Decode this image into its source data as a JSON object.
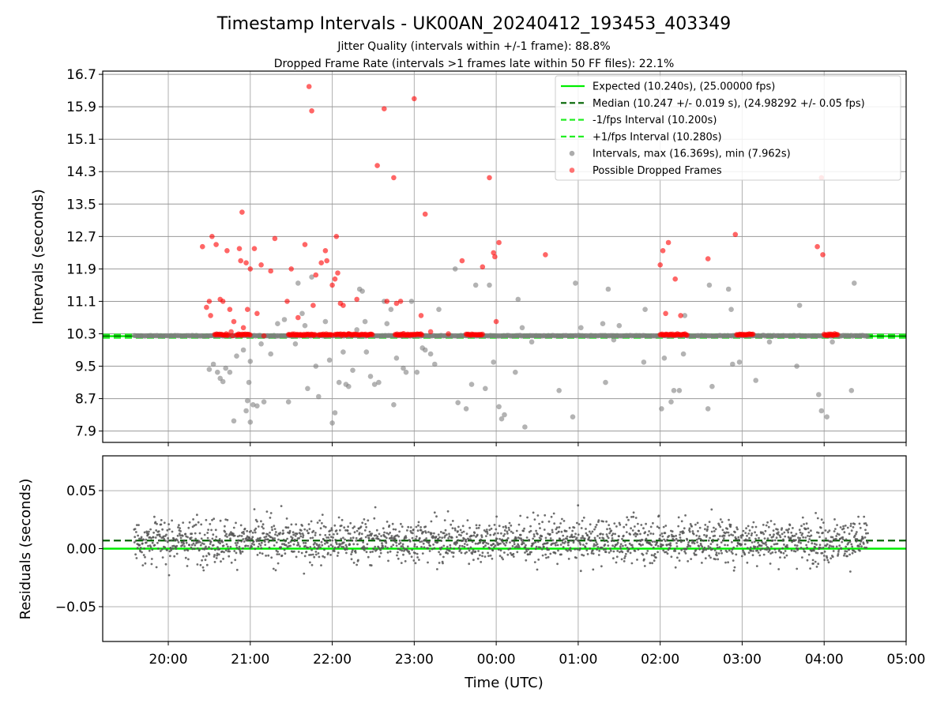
{
  "title": "Timestamp Intervals - UK00AN_20240412_193453_403349",
  "subtitle_1": "Jitter Quality (intervals within +/-1 frame): 88.8%",
  "subtitle_2": "Dropped Frame Rate (intervals >1 frames late within 50 FF files): 22.1%",
  "colors": {
    "expected": "#00ee00",
    "median": "#006400",
    "band": "#22ee22",
    "intervals": "#808080",
    "dropped": "#ff0000",
    "residuals": "#555555",
    "grid": "#b0b0b0"
  },
  "chart_data": [
    {
      "type": "scatter",
      "panel": "top",
      "ylabel": "Intervals (seconds)",
      "xlabel": "",
      "x_axis": "time (UTC)",
      "xlim": [
        "2024-04-12 19:12",
        "2024-04-13 05:00"
      ],
      "ylim": [
        7.62,
        16.78
      ],
      "yticks": [
        "7.9",
        "8.7",
        "9.5",
        "10.3",
        "11.1",
        "11.9",
        "12.7",
        "13.5",
        "14.3",
        "15.1",
        "15.9",
        "16.7"
      ],
      "grid": true,
      "legend_position": "top-right",
      "lines": [
        {
          "name": "Expected (10.240s), (25.00000 fps)",
          "y": 10.24,
          "style": "solid",
          "color": "#00ee00"
        },
        {
          "name": "Median (10.247 +/- 0.019 s), (24.98292 +/- 0.05 fps)",
          "y": 10.247,
          "style": "dashed",
          "color": "#006400"
        },
        {
          "name": "-1/fps Interval (10.200s)",
          "y": 10.2,
          "style": "dashed",
          "color": "#22ee22"
        },
        {
          "name": "+1/fps Interval (10.280s)",
          "y": 10.28,
          "style": "dashed",
          "color": "#22ee22"
        }
      ],
      "series": [
        {
          "name": "Intervals, max (16.369s), min (7.962s)",
          "color": "#808080",
          "time_range": [
            "19:35",
            "04:32"
          ],
          "typical_value": 10.25,
          "points": [
            [
              "20:30",
              9.42
            ],
            [
              "20:33",
              9.55
            ],
            [
              "20:36",
              9.35
            ],
            [
              "20:38",
              9.2
            ],
            [
              "20:40",
              9.12
            ],
            [
              "20:42",
              9.45
            ],
            [
              "20:45",
              9.35
            ],
            [
              "20:50",
              9.75
            ],
            [
              "20:55",
              9.9
            ],
            [
              "21:00",
              9.62
            ],
            [
              "20:48",
              8.15
            ],
            [
              "20:57",
              8.4
            ],
            [
              "20:58",
              8.65
            ],
            [
              "20:59",
              9.1
            ],
            [
              "21:02",
              8.55
            ],
            [
              "21:05",
              8.52
            ],
            [
              "21:00",
              8.12
            ],
            [
              "21:10",
              8.62
            ],
            [
              "21:08",
              10.05
            ],
            [
              "21:15",
              9.8
            ],
            [
              "21:20",
              10.55
            ],
            [
              "21:25",
              10.65
            ],
            [
              "21:28",
              8.62
            ],
            [
              "21:33",
              10.05
            ],
            [
              "21:35",
              11.55
            ],
            [
              "21:38",
              10.8
            ],
            [
              "21:40",
              10.5
            ],
            [
              "21:42",
              8.95
            ],
            [
              "21:45",
              11.7
            ],
            [
              "21:48",
              9.5
            ],
            [
              "21:50",
              8.75
            ],
            [
              "21:55",
              10.6
            ],
            [
              "21:58",
              9.65
            ],
            [
              "22:00",
              8.1
            ],
            [
              "22:02",
              8.35
            ],
            [
              "22:05",
              9.1
            ],
            [
              "22:08",
              9.85
            ],
            [
              "22:10",
              9.05
            ],
            [
              "22:12",
              9.0
            ],
            [
              "22:15",
              9.4
            ],
            [
              "22:18",
              10.4
            ],
            [
              "22:20",
              11.4
            ],
            [
              "22:22",
              11.35
            ],
            [
              "22:24",
              10.6
            ],
            [
              "22:25",
              9.85
            ],
            [
              "22:28",
              9.25
            ],
            [
              "22:31",
              9.05
            ],
            [
              "22:34",
              9.1
            ],
            [
              "22:38",
              11.1
            ],
            [
              "22:40",
              10.55
            ],
            [
              "22:43",
              10.9
            ],
            [
              "22:45",
              8.55
            ],
            [
              "22:47",
              9.7
            ],
            [
              "22:52",
              9.45
            ],
            [
              "22:54",
              9.35
            ],
            [
              "22:58",
              11.1
            ],
            [
              "23:02",
              9.35
            ],
            [
              "23:06",
              9.95
            ],
            [
              "23:08",
              9.9
            ],
            [
              "23:12",
              9.8
            ],
            [
              "23:15",
              9.55
            ],
            [
              "23:18",
              10.9
            ],
            [
              "23:30",
              11.9
            ],
            [
              "23:32",
              8.6
            ],
            [
              "23:38",
              8.45
            ],
            [
              "23:42",
              9.05
            ],
            [
              "23:45",
              11.5
            ],
            [
              "23:52",
              8.95
            ],
            [
              "23:55",
              11.5
            ],
            [
              "23:58",
              9.6
            ],
            [
              "00:02",
              8.5
            ],
            [
              "00:04",
              8.2
            ],
            [
              "00:06",
              8.3
            ],
            [
              "00:14",
              9.35
            ],
            [
              "00:16",
              11.15
            ],
            [
              "00:19",
              10.45
            ],
            [
              "00:21",
              8.0
            ],
            [
              "00:26",
              10.1
            ],
            [
              "00:46",
              8.9
            ],
            [
              "00:56",
              8.25
            ],
            [
              "00:58",
              11.55
            ],
            [
              "01:18",
              10.55
            ],
            [
              "01:20",
              9.1
            ],
            [
              "01:22",
              11.4
            ],
            [
              "01:26",
              10.15
            ],
            [
              "01:30",
              10.5
            ],
            [
              "01:48",
              9.6
            ],
            [
              "01:49",
              10.9
            ],
            [
              "02:01",
              8.45
            ],
            [
              "02:03",
              9.7
            ],
            [
              "02:08",
              8.62
            ],
            [
              "02:10",
              8.9
            ],
            [
              "02:14",
              8.9
            ],
            [
              "02:17",
              9.8
            ],
            [
              "02:18",
              10.75
            ],
            [
              "02:35",
              8.45
            ],
            [
              "02:36",
              11.5
            ],
            [
              "02:38",
              9.0
            ],
            [
              "02:50",
              11.4
            ],
            [
              "02:52",
              10.9
            ],
            [
              "02:53",
              9.55
            ],
            [
              "02:58",
              9.6
            ],
            [
              "03:10",
              9.15
            ],
            [
              "03:40",
              9.5
            ],
            [
              "03:42",
              11.0
            ],
            [
              "03:56",
              8.8
            ],
            [
              "03:58",
              8.4
            ],
            [
              "04:02",
              8.25
            ],
            [
              "04:20",
              8.9
            ],
            [
              "04:22",
              11.55
            ],
            [
              "04:06",
              10.1
            ],
            [
              "03:20",
              10.1
            ],
            [
              "01:02",
              10.45
            ]
          ]
        },
        {
          "name": "Possible Dropped Frames",
          "color": "#ff0000",
          "clusters": [
            [
              "20:34",
              "20:44"
            ],
            [
              "20:50",
              "21:00"
            ],
            [
              "21:28",
              "21:48"
            ],
            [
              "21:50",
              "22:00"
            ],
            [
              "22:02",
              "22:30"
            ],
            [
              "22:46",
              "23:06"
            ],
            [
              "23:38",
              "23:50"
            ],
            [
              "02:00",
              "02:20"
            ],
            [
              "02:56",
              "03:08"
            ],
            [
              "04:00",
              "04:10"
            ]
          ],
          "cluster_value": 10.28,
          "points": [
            [
              "20:25",
              12.45
            ],
            [
              "20:28",
              10.95
            ],
            [
              "20:30",
              11.1
            ],
            [
              "20:31",
              10.75
            ],
            [
              "20:32",
              12.7
            ],
            [
              "20:35",
              12.5
            ],
            [
              "20:38",
              11.15
            ],
            [
              "20:40",
              11.1
            ],
            [
              "20:43",
              12.35
            ],
            [
              "20:45",
              10.9
            ],
            [
              "20:46",
              10.35
            ],
            [
              "20:47",
              10.25
            ],
            [
              "20:48",
              10.6
            ],
            [
              "20:52",
              12.4
            ],
            [
              "20:53",
              12.1
            ],
            [
              "20:54",
              13.3
            ],
            [
              "20:55",
              10.45
            ],
            [
              "20:57",
              12.05
            ],
            [
              "20:58",
              10.9
            ],
            [
              "21:00",
              11.9
            ],
            [
              "21:03",
              12.4
            ],
            [
              "21:05",
              10.8
            ],
            [
              "21:08",
              12.0
            ],
            [
              "21:10",
              10.25
            ],
            [
              "21:15",
              11.85
            ],
            [
              "21:18",
              12.65
            ],
            [
              "21:27",
              11.1
            ],
            [
              "21:30",
              11.9
            ],
            [
              "21:35",
              10.7
            ],
            [
              "21:40",
              12.5
            ],
            [
              "21:43",
              16.4
            ],
            [
              "21:45",
              15.8
            ],
            [
              "21:46",
              11.0
            ],
            [
              "21:48",
              11.75
            ],
            [
              "21:52",
              12.05
            ],
            [
              "21:55",
              12.35
            ],
            [
              "21:56",
              12.1
            ],
            [
              "22:00",
              11.5
            ],
            [
              "22:02",
              11.65
            ],
            [
              "22:04",
              11.8
            ],
            [
              "22:06",
              11.05
            ],
            [
              "22:08",
              11.0
            ],
            [
              "22:03",
              12.7
            ],
            [
              "22:12",
              10.3
            ],
            [
              "22:18",
              11.15
            ],
            [
              "22:33",
              14.45
            ],
            [
              "22:38",
              15.85
            ],
            [
              "22:40",
              11.1
            ],
            [
              "22:45",
              14.15
            ],
            [
              "22:47",
              11.05
            ],
            [
              "22:50",
              11.1
            ],
            [
              "23:00",
              16.1
            ],
            [
              "23:05",
              10.75
            ],
            [
              "23:08",
              13.25
            ],
            [
              "23:12",
              10.35
            ],
            [
              "23:25",
              10.3
            ],
            [
              "23:35",
              12.1
            ],
            [
              "23:50",
              11.95
            ],
            [
              "23:55",
              14.15
            ],
            [
              "23:58",
              12.3
            ],
            [
              "23:59",
              12.2
            ],
            [
              "24:00",
              10.6
            ],
            [
              "24:02",
              12.55
            ],
            [
              "24:36",
              12.25
            ],
            [
              "26:00",
              12.0
            ],
            [
              "26:02",
              12.35
            ],
            [
              "26:04",
              10.8
            ],
            [
              "26:06",
              12.55
            ],
            [
              "26:11",
              11.65
            ],
            [
              "26:15",
              10.75
            ],
            [
              "26:35",
              12.15
            ],
            [
              "26:55",
              12.75
            ],
            [
              "27:55",
              12.45
            ],
            [
              "27:59",
              12.25
            ],
            [
              "27:58",
              14.15
            ]
          ]
        }
      ]
    },
    {
      "type": "scatter",
      "panel": "bottom",
      "ylabel": "Residuals (seconds)",
      "xlabel": "Time (UTC)",
      "xticks": [
        "20:00",
        "21:00",
        "22:00",
        "23:00",
        "00:00",
        "01:00",
        "02:00",
        "03:00",
        "04:00",
        "05:00"
      ],
      "ylim": [
        -0.08,
        0.08
      ],
      "yticks": [
        "−0.05",
        "0.00",
        "0.05"
      ],
      "grid": true,
      "lines": [
        {
          "y": 0.0,
          "style": "solid",
          "color": "#00ee00"
        },
        {
          "y": 0.007,
          "style": "dashed",
          "color": "#006400"
        }
      ],
      "series": [
        {
          "name": "",
          "color": "#555555",
          "time_range": [
            "19:35",
            "04:32"
          ],
          "distribution": {
            "mean": 0.007,
            "stdev": 0.02,
            "count": 2100
          }
        }
      ]
    }
  ],
  "legend": [
    {
      "label": "Expected (10.240s), (25.00000 fps)",
      "style": "solid",
      "color": "#00ee00"
    },
    {
      "label": "Median (10.247 +/- 0.019 s), (24.98292 +/- 0.05 fps)",
      "style": "dashed",
      "color": "#006400"
    },
    {
      "label": "-1/fps Interval (10.200s)",
      "style": "dashed",
      "color": "#22ee22"
    },
    {
      "label": "+1/fps Interval (10.280s)",
      "style": "dashed",
      "color": "#22ee22"
    },
    {
      "label": "Intervals, max (16.369s), min (7.962s)",
      "style": "dot",
      "color": "#909090"
    },
    {
      "label": "Possible Dropped Frames",
      "style": "dot",
      "color": "#ff4444"
    }
  ]
}
